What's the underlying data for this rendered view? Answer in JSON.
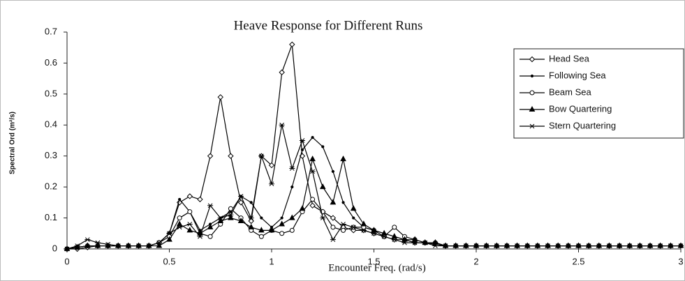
{
  "chart_data": {
    "type": "line",
    "title": "Heave Response for Different Runs",
    "xlabel": "Encounter Freq. (rad/s)",
    "ylabel": "Spectral Ord (m²/s)",
    "x": [
      0,
      0.05,
      0.1,
      0.15,
      0.2,
      0.25,
      0.3,
      0.35,
      0.4,
      0.45,
      0.5,
      0.55,
      0.6,
      0.65,
      0.7,
      0.75,
      0.8,
      0.85,
      0.9,
      0.95,
      1,
      1.05,
      1.1,
      1.15,
      1.2,
      1.25,
      1.3,
      1.35,
      1.4,
      1.45,
      1.5,
      1.55,
      1.6,
      1.65,
      1.7,
      1.75,
      1.8,
      1.85,
      1.9,
      1.95,
      2,
      2.05,
      2.1,
      2.15,
      2.2,
      2.25,
      2.3,
      2.35,
      2.4,
      2.45,
      2.5,
      2.55,
      2.6,
      2.65,
      2.7,
      2.75,
      2.8,
      2.85,
      2.9,
      2.95,
      3
    ],
    "series": [
      {
        "name": "Head Sea",
        "color": "#000000",
        "marker": "diamond",
        "values": [
          0,
          0,
          0.005,
          0.01,
          0.01,
          0.01,
          0.01,
          0.01,
          0.01,
          0.02,
          0.05,
          0.15,
          0.17,
          0.16,
          0.3,
          0.49,
          0.3,
          0.15,
          0.09,
          0.3,
          0.27,
          0.57,
          0.66,
          0.3,
          0.14,
          0.12,
          0.1,
          0.07,
          0.06,
          0.06,
          0.05,
          0.04,
          0.03,
          0.03,
          0.02,
          0.02,
          0.02,
          0.01,
          0.01,
          0.01,
          0.01,
          0.01,
          0.01,
          0.01,
          0.01,
          0.01,
          0.01,
          0.01,
          0.01,
          0.01,
          0.01,
          0.01,
          0.01,
          0.01,
          0.01,
          0.01,
          0.01,
          0.01,
          0.01,
          0.01,
          0.01
        ]
      },
      {
        "name": "Following Sea",
        "color": "#000000",
        "marker": "dot",
        "values": [
          0,
          0.005,
          0.01,
          0.01,
          0.01,
          0.01,
          0.01,
          0.01,
          0.01,
          0.02,
          0.05,
          0.16,
          0.12,
          0.06,
          0.08,
          0.1,
          0.12,
          0.17,
          0.15,
          0.1,
          0.07,
          0.1,
          0.2,
          0.32,
          0.36,
          0.33,
          0.25,
          0.15,
          0.1,
          0.07,
          0.06,
          0.05,
          0.04,
          0.03,
          0.02,
          0.02,
          0.015,
          0.01,
          0.01,
          0.01,
          0.01,
          0.01,
          0.01,
          0.01,
          0.01,
          0.01,
          0.01,
          0.01,
          0.01,
          0.01,
          0.01,
          0.01,
          0.01,
          0.01,
          0.01,
          0.01,
          0.01,
          0.01,
          0.01,
          0.01,
          0.01
        ]
      },
      {
        "name": "Beam Sea",
        "color": "#000000",
        "marker": "circle",
        "values": [
          0,
          0.005,
          0.01,
          0.01,
          0.01,
          0.01,
          0.01,
          0.01,
          0.01,
          0.02,
          0.04,
          0.1,
          0.12,
          0.05,
          0.04,
          0.08,
          0.13,
          0.1,
          0.06,
          0.04,
          0.06,
          0.05,
          0.06,
          0.12,
          0.16,
          0.12,
          0.07,
          0.06,
          0.07,
          0.07,
          0.06,
          0.04,
          0.07,
          0.04,
          0.03,
          0.02,
          0.02,
          0.01,
          0.01,
          0.01,
          0.01,
          0.01,
          0.01,
          0.01,
          0.01,
          0.01,
          0.01,
          0.01,
          0.01,
          0.01,
          0.01,
          0.01,
          0.01,
          0.01,
          0.01,
          0.01,
          0.01,
          0.01,
          0.01,
          0.01,
          0.01
        ]
      },
      {
        "name": "Bow Quartering",
        "color": "#000000",
        "marker": "triangle",
        "values": [
          0,
          0.005,
          0.01,
          0.01,
          0.01,
          0.01,
          0.01,
          0.01,
          0.01,
          0.01,
          0.03,
          0.08,
          0.06,
          0.05,
          0.07,
          0.09,
          0.1,
          0.09,
          0.07,
          0.06,
          0.06,
          0.08,
          0.1,
          0.13,
          0.29,
          0.2,
          0.15,
          0.29,
          0.13,
          0.08,
          0.06,
          0.05,
          0.04,
          0.03,
          0.03,
          0.02,
          0.02,
          0.01,
          0.01,
          0.01,
          0.01,
          0.01,
          0.01,
          0.01,
          0.01,
          0.01,
          0.01,
          0.01,
          0.01,
          0.01,
          0.01,
          0.01,
          0.01,
          0.01,
          0.01,
          0.01,
          0.01,
          0.01,
          0.01,
          0.01,
          0.01
        ]
      },
      {
        "name": "Stern Quartering",
        "color": "#000000",
        "marker": "asterisk",
        "values": [
          0,
          0.01,
          0.03,
          0.02,
          0.015,
          0.01,
          0.01,
          0.01,
          0.01,
          0.02,
          0.05,
          0.07,
          0.08,
          0.04,
          0.14,
          0.1,
          0.11,
          0.17,
          0.1,
          0.3,
          0.21,
          0.4,
          0.26,
          0.35,
          0.25,
          0.1,
          0.03,
          0.08,
          0.07,
          0.06,
          0.05,
          0.04,
          0.03,
          0.02,
          0.02,
          0.02,
          0.01,
          0.01,
          0.01,
          0.01,
          0.01,
          0.01,
          0.01,
          0.01,
          0.01,
          0.01,
          0.01,
          0.01,
          0.01,
          0.01,
          0.01,
          0.01,
          0.01,
          0.01,
          0.01,
          0.01,
          0.01,
          0.01,
          0.01,
          0.01,
          0.01
        ]
      }
    ],
    "xlim": [
      0,
      3
    ],
    "ylim": [
      0,
      0.7
    ],
    "xticks": [
      0,
      0.5,
      1,
      1.5,
      2,
      2.5,
      3
    ],
    "yticks": [
      0,
      0.1,
      0.2,
      0.3,
      0.4,
      0.5,
      0.6,
      0.7
    ],
    "grid": false,
    "legend": "upper right"
  }
}
